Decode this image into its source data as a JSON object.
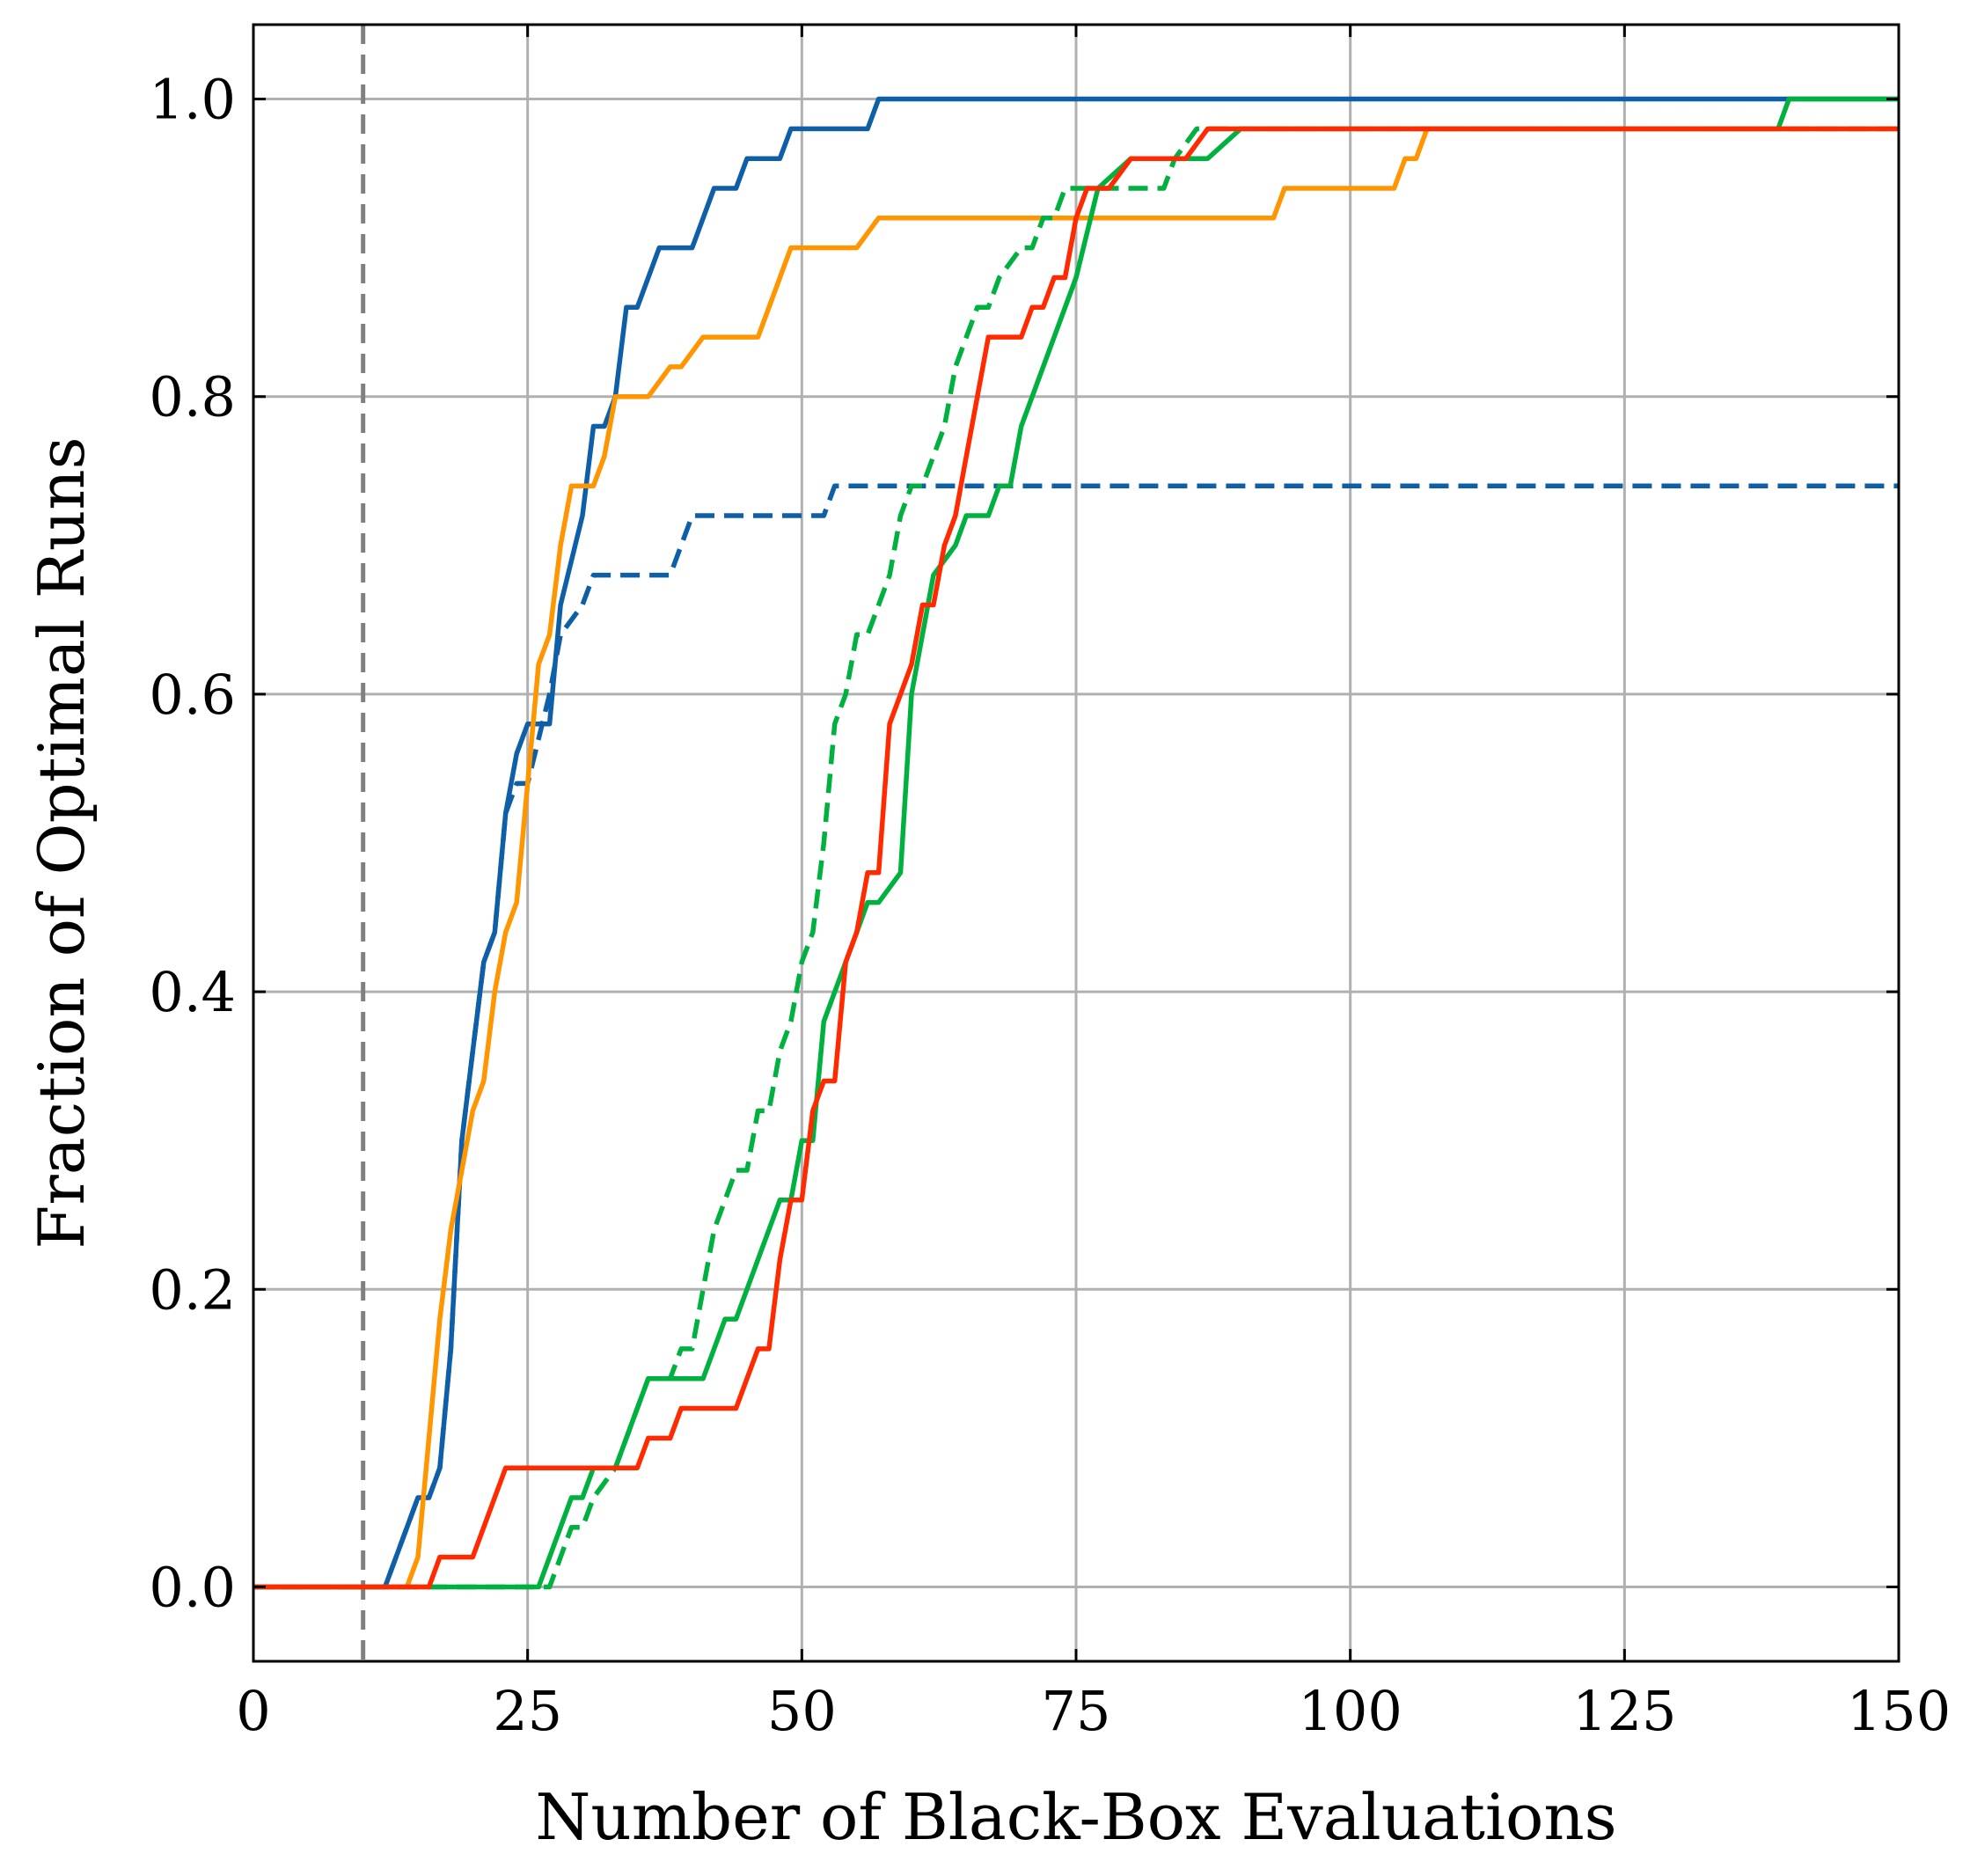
{
  "chart_data": {
    "type": "line",
    "title": "",
    "xlabel": "Number of Black-Box Evaluations",
    "ylabel": "Fraction of Optimal Runs",
    "xlim": [
      0,
      150
    ],
    "ylim": [
      -0.05,
      1.05
    ],
    "xticks": [
      0,
      25,
      50,
      75,
      100,
      125,
      150
    ],
    "yticks": [
      0.0,
      0.2,
      0.4,
      0.6,
      0.8,
      1.0
    ],
    "xtick_labels": [
      "0",
      "25",
      "50",
      "75",
      "100",
      "125",
      "150"
    ],
    "ytick_labels": [
      "0.0",
      "0.2",
      "0.4",
      "0.6",
      "0.8",
      "1.0"
    ],
    "grid": true,
    "reference_line": {
      "x": 10,
      "color": "#808080",
      "style": "dashed"
    },
    "series": [
      {
        "color": "#0f5fa8",
        "style": "solid",
        "x": [
          0,
          12,
          15,
          16,
          17,
          18,
          19,
          20,
          21,
          22,
          23,
          24,
          25,
          27,
          28,
          30,
          31,
          32,
          33,
          34,
          35,
          37,
          40,
          42,
          44,
          45,
          48,
          49,
          56,
          57,
          150
        ],
        "y": [
          0,
          0,
          0.06,
          0.06,
          0.08,
          0.16,
          0.3,
          0.36,
          0.42,
          0.44,
          0.52,
          0.56,
          0.58,
          0.58,
          0.66,
          0.72,
          0.78,
          0.78,
          0.8,
          0.86,
          0.86,
          0.9,
          0.9,
          0.94,
          0.94,
          0.96,
          0.96,
          0.98,
          0.98,
          1.0,
          1.0
        ]
      },
      {
        "color": "#0f5fa8",
        "style": "dashed",
        "x": [
          0,
          12,
          15,
          16,
          17,
          18,
          19,
          20,
          21,
          22,
          23,
          24,
          25,
          27,
          28,
          30,
          31,
          38,
          40,
          52,
          53,
          150
        ],
        "y": [
          0,
          0,
          0.06,
          0.06,
          0.08,
          0.16,
          0.3,
          0.36,
          0.42,
          0.44,
          0.52,
          0.54,
          0.54,
          0.6,
          0.64,
          0.66,
          0.68,
          0.68,
          0.72,
          0.72,
          0.74,
          0.74
        ]
      },
      {
        "color": "#ff9500",
        "style": "solid",
        "x": [
          0,
          14,
          15,
          16,
          17,
          18,
          19,
          20,
          21,
          22,
          23,
          24,
          25,
          26,
          27,
          28,
          29,
          31,
          32,
          33,
          36,
          38,
          39,
          41,
          46,
          49,
          55,
          57,
          87,
          93,
          94,
          104,
          105,
          106,
          107,
          150
        ],
        "y": [
          0,
          0,
          0.02,
          0.1,
          0.18,
          0.24,
          0.28,
          0.32,
          0.34,
          0.4,
          0.44,
          0.46,
          0.54,
          0.62,
          0.64,
          0.7,
          0.74,
          0.74,
          0.76,
          0.8,
          0.8,
          0.82,
          0.82,
          0.84,
          0.84,
          0.9,
          0.9,
          0.92,
          0.92,
          0.92,
          0.94,
          0.94,
          0.96,
          0.96,
          0.98,
          0.98
        ]
      },
      {
        "color": "#00b140",
        "style": "solid",
        "x": [
          0,
          26,
          27,
          29,
          30,
          31,
          33,
          35,
          36,
          37,
          41,
          43,
          44,
          48,
          49,
          50,
          51,
          52,
          55,
          56,
          57,
          59,
          60,
          62,
          64,
          65,
          67,
          68,
          69,
          70,
          75,
          77,
          80,
          87,
          90,
          139,
          140,
          150
        ],
        "y": [
          0,
          0,
          0.02,
          0.06,
          0.06,
          0.08,
          0.08,
          0.12,
          0.14,
          0.14,
          0.14,
          0.18,
          0.18,
          0.26,
          0.26,
          0.3,
          0.3,
          0.38,
          0.44,
          0.46,
          0.46,
          0.48,
          0.6,
          0.68,
          0.7,
          0.72,
          0.72,
          0.74,
          0.74,
          0.78,
          0.88,
          0.94,
          0.96,
          0.96,
          0.98,
          0.98,
          1.0,
          1.0
        ]
      },
      {
        "color": "#00b140",
        "style": "dashed",
        "x": [
          0,
          27,
          28,
          29,
          30,
          31,
          33,
          34,
          35,
          36,
          37,
          38,
          39,
          40,
          41,
          42,
          44,
          45,
          46,
          47,
          48,
          49,
          50,
          51,
          52,
          53,
          54,
          55,
          56,
          57,
          58,
          59,
          60,
          61,
          62,
          63,
          64,
          65,
          66,
          67,
          68,
          70,
          71,
          72,
          73,
          74,
          75,
          76,
          77,
          83,
          84,
          86,
          150
        ],
        "y": [
          0,
          0,
          0.02,
          0.04,
          0.04,
          0.06,
          0.08,
          0.1,
          0.12,
          0.14,
          0.14,
          0.14,
          0.16,
          0.16,
          0.2,
          0.24,
          0.28,
          0.28,
          0.32,
          0.32,
          0.36,
          0.38,
          0.42,
          0.44,
          0.5,
          0.58,
          0.6,
          0.64,
          0.64,
          0.66,
          0.68,
          0.72,
          0.74,
          0.74,
          0.76,
          0.78,
          0.82,
          0.84,
          0.86,
          0.86,
          0.88,
          0.9,
          0.9,
          0.92,
          0.92,
          0.94,
          0.94,
          0.94,
          0.94,
          0.94,
          0.96,
          0.98,
          0.98
        ]
      },
      {
        "color": "#ff2a00",
        "style": "solid",
        "x": [
          0,
          16,
          17,
          20,
          23,
          26,
          27,
          28,
          31,
          35,
          36,
          38,
          39,
          44,
          46,
          47,
          48,
          49,
          50,
          51,
          52,
          53,
          54,
          55,
          56,
          57,
          58,
          60,
          61,
          62,
          63,
          64,
          65,
          66,
          67,
          68,
          70,
          71,
          72,
          73,
          74,
          75,
          76,
          77,
          78,
          80,
          81,
          83,
          85,
          87,
          150
        ],
        "y": [
          0,
          0,
          0.02,
          0.02,
          0.08,
          0.08,
          0.08,
          0.08,
          0.08,
          0.08,
          0.1,
          0.1,
          0.12,
          0.12,
          0.16,
          0.16,
          0.22,
          0.26,
          0.26,
          0.32,
          0.34,
          0.34,
          0.42,
          0.44,
          0.48,
          0.48,
          0.58,
          0.62,
          0.66,
          0.66,
          0.7,
          0.72,
          0.76,
          0.8,
          0.84,
          0.84,
          0.84,
          0.86,
          0.86,
          0.88,
          0.88,
          0.92,
          0.94,
          0.94,
          0.94,
          0.96,
          0.96,
          0.96,
          0.96,
          0.98,
          0.98
        ]
      }
    ]
  }
}
